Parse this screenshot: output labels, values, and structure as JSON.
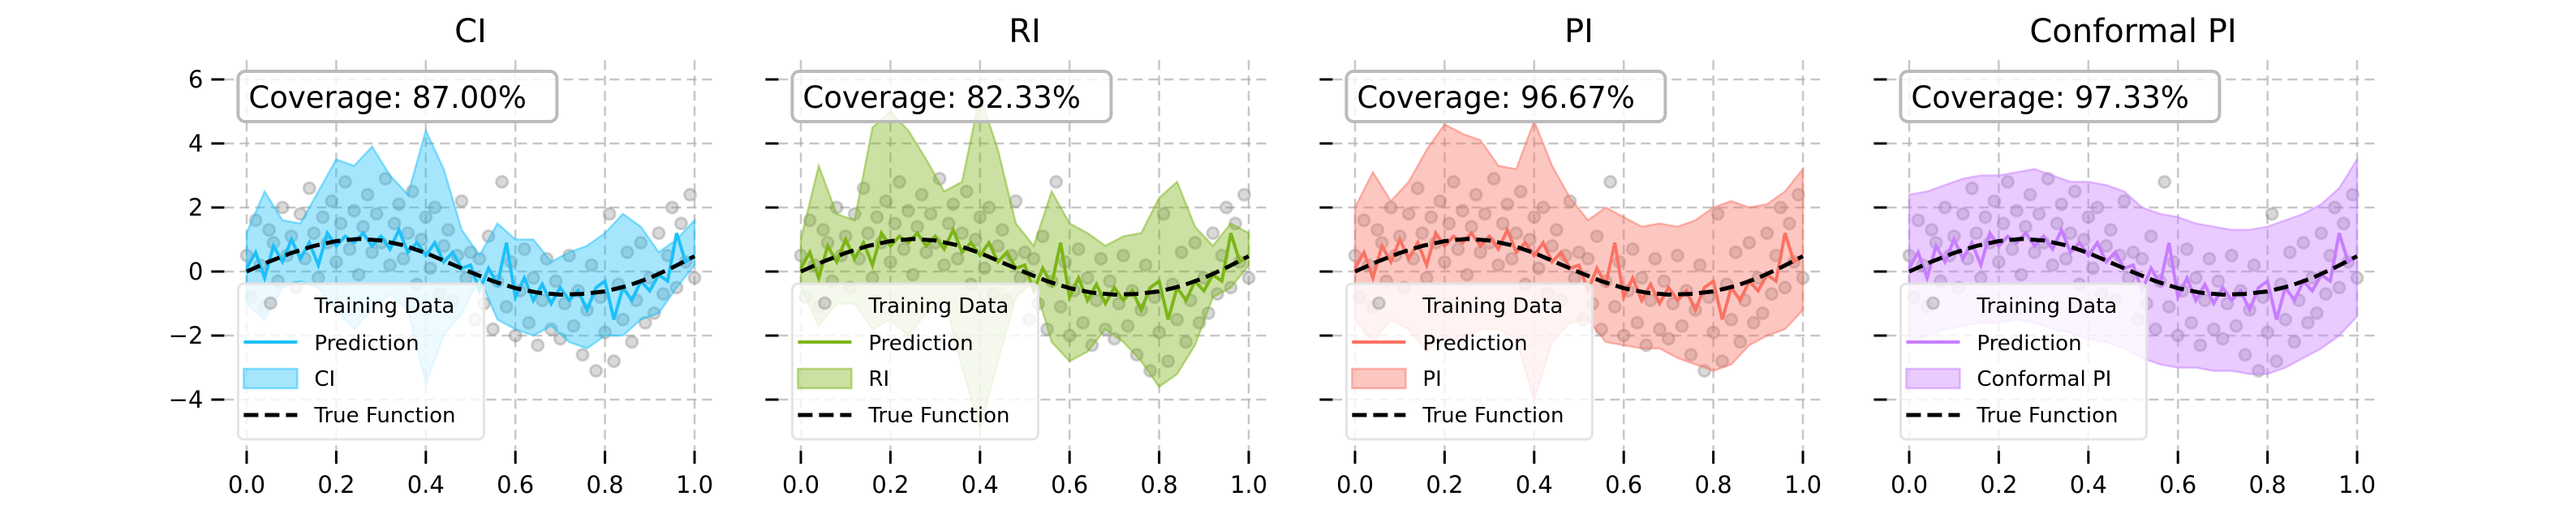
{
  "chart_data": {
    "type": "line",
    "grid": true,
    "legend_placement": "lower-left",
    "xlim": [
      -0.05,
      1.05
    ],
    "ylim": [
      -5.6,
      6.6
    ],
    "x_ticks": [
      "0.0",
      "0.2",
      "0.4",
      "0.6",
      "0.8",
      "1.0"
    ],
    "y_ticks": [
      "6",
      "4",
      "2",
      "0",
      "−2",
      "−4"
    ],
    "y_tick_values": [
      6,
      4,
      2,
      0,
      -2,
      -4
    ],
    "x_tick_values": [
      0,
      0.2,
      0.4,
      0.6,
      0.8,
      1.0
    ],
    "training_data_color": "#808080",
    "true_function": {
      "name": "True Function",
      "x": [
        0,
        0.05,
        0.1,
        0.15,
        0.2,
        0.25,
        0.3,
        0.35,
        0.4,
        0.45,
        0.5,
        0.55,
        0.6,
        0.65,
        0.7,
        0.75,
        0.8,
        0.85,
        0.9,
        0.95,
        1.0
      ],
      "y": [
        0,
        0.31,
        0.58,
        0.8,
        0.95,
        1.02,
        0.97,
        0.82,
        0.58,
        0.28,
        -0.02,
        -0.3,
        -0.52,
        -0.66,
        -0.72,
        -0.7,
        -0.62,
        -0.45,
        -0.2,
        0.12,
        0.48
      ]
    },
    "training_data": {
      "name": "Training Data",
      "x": [
        0,
        0.01,
        0.02,
        0.03,
        0.04,
        0.05,
        0.06,
        0.07,
        0.08,
        0.09,
        0.1,
        0.11,
        0.12,
        0.13,
        0.14,
        0.15,
        0.16,
        0.17,
        0.18,
        0.19,
        0.2,
        0.21,
        0.22,
        0.23,
        0.24,
        0.25,
        0.26,
        0.27,
        0.28,
        0.29,
        0.3,
        0.31,
        0.32,
        0.33,
        0.34,
        0.35,
        0.36,
        0.37,
        0.38,
        0.39,
        0.4,
        0.41,
        0.42,
        0.43,
        0.44,
        0.45,
        0.46,
        0.47,
        0.48,
        0.49,
        0.5,
        0.51,
        0.52,
        0.53,
        0.54,
        0.55,
        0.56,
        0.57,
        0.58,
        0.59,
        0.6,
        0.61,
        0.62,
        0.63,
        0.64,
        0.65,
        0.66,
        0.67,
        0.68,
        0.69,
        0.7,
        0.71,
        0.72,
        0.73,
        0.74,
        0.75,
        0.76,
        0.77,
        0.78,
        0.79,
        0.8,
        0.81,
        0.82,
        0.83,
        0.84,
        0.85,
        0.86,
        0.87,
        0.88,
        0.89,
        0.9,
        0.91,
        0.92,
        0.93,
        0.94,
        0.95,
        0.96,
        0.97,
        0.98,
        0.99,
        1.0
      ],
      "y": [
        0.5,
        -0.8,
        1.6,
        0.2,
        -1.1,
        1.3,
        0.9,
        -0.3,
        2.0,
        0.5,
        1.1,
        -0.5,
        1.8,
        0.4,
        2.6,
        1.2,
        -0.2,
        1.7,
        0.9,
        2.2,
        0.3,
        1.5,
        2.8,
        0.7,
        1.9,
        -0.1,
        1.4,
        2.4,
        0.6,
        1.8,
        0.9,
        2.9,
        0.2,
        1.5,
        2.1,
        0.4,
        1.2,
        2.5,
        -0.4,
        1.0,
        1.7,
        0.1,
        2.0,
        -0.7,
        0.8,
        1.3,
        -0.9,
        0.5,
        2.2,
        -0.2,
        0.6,
        -1.5,
        0.4,
        -1.0,
        1.1,
        -1.8,
        -0.3,
        2.8,
        -1.1,
        0.3,
        -2.0,
        -0.6,
        0.7,
        -1.6,
        -0.2,
        -2.3,
        -0.9,
        0.4,
        -1.8,
        -0.3,
        -2.1,
        -1.0,
        0.5,
        -1.7,
        -0.6,
        -2.6,
        -1.2,
        0.2,
        -3.1,
        -0.8,
        -1.9,
        1.8,
        -2.8,
        -0.4,
        -1.5,
        0.6,
        -2.2,
        -0.9,
        0.9,
        -1.6,
        -0.2,
        -1.3,
        1.2,
        -0.7,
        0.5,
        2.0,
        -0.5,
        1.5,
        0.3,
        2.4,
        -0.2
      ]
    },
    "prediction": {
      "name": "Prediction",
      "x": [
        0,
        0.02,
        0.04,
        0.06,
        0.08,
        0.1,
        0.12,
        0.14,
        0.16,
        0.18,
        0.2,
        0.22,
        0.24,
        0.26,
        0.28,
        0.3,
        0.32,
        0.34,
        0.36,
        0.38,
        0.4,
        0.42,
        0.44,
        0.46,
        0.48,
        0.5,
        0.52,
        0.54,
        0.56,
        0.58,
        0.6,
        0.62,
        0.64,
        0.66,
        0.68,
        0.7,
        0.72,
        0.74,
        0.76,
        0.78,
        0.8,
        0.82,
        0.84,
        0.86,
        0.88,
        0.9,
        0.92,
        0.94,
        0.96,
        0.98,
        1.0
      ],
      "y": [
        0.1,
        0.6,
        -0.2,
        0.8,
        0.3,
        1.0,
        0.4,
        0.9,
        0.2,
        1.2,
        0.8,
        1.1,
        0.9,
        1.2,
        0.8,
        1.1,
        0.7,
        1.3,
        0.6,
        0.9,
        0.5,
        0.9,
        0.3,
        0.6,
        0.1,
        0.2,
        -0.6,
        0.1,
        -0.4,
        0.9,
        -0.8,
        -0.2,
        -0.9,
        -0.4,
        -1.0,
        -0.5,
        -0.9,
        -0.6,
        -1.2,
        -0.5,
        -0.3,
        -1.5,
        -0.5,
        -0.9,
        -0.3,
        -0.6,
        -0.1,
        -0.3,
        1.2,
        0.3,
        0.5
      ]
    },
    "band_x": [
      0,
      0.04,
      0.08,
      0.12,
      0.16,
      0.2,
      0.24,
      0.28,
      0.32,
      0.36,
      0.4,
      0.44,
      0.48,
      0.52,
      0.56,
      0.6,
      0.64,
      0.68,
      0.72,
      0.76,
      0.8,
      0.84,
      0.88,
      0.92,
      0.96,
      1.0
    ],
    "panels": [
      {
        "title": "CI",
        "coverage_text": "Coverage: 87.00%",
        "band_label": "CI",
        "color": "#1ec0f9",
        "upper": [
          1.2,
          2.5,
          1.6,
          1.5,
          2.5,
          3.5,
          3.3,
          3.9,
          3.0,
          2.4,
          4.4,
          3.2,
          1.3,
          0.5,
          1.5,
          1.0,
          1.0,
          0.3,
          0.6,
          0.8,
          1.2,
          1.8,
          1.4,
          0.6,
          1.0,
          1.6
        ],
        "lower": [
          -1.0,
          -1.5,
          -0.5,
          -0.3,
          -0.5,
          -1.2,
          -1.8,
          -1.2,
          -0.7,
          -1.2,
          -3.5,
          -2.0,
          -1.3,
          -0.2,
          -1.5,
          -1.8,
          -2.0,
          -1.7,
          -2.2,
          -2.4,
          -2.0,
          -2.0,
          -1.5,
          -1.3,
          -0.5,
          0.2
        ]
      },
      {
        "title": "RI",
        "coverage_text": "Coverage: 82.33%",
        "band_label": "RI",
        "color": "#7cb518",
        "upper": [
          1.0,
          3.3,
          1.8,
          1.6,
          4.5,
          5.0,
          4.4,
          3.5,
          2.5,
          2.8,
          5.5,
          3.8,
          1.5,
          0.8,
          2.5,
          1.5,
          1.2,
          0.8,
          1.1,
          1.2,
          2.3,
          2.8,
          1.4,
          0.8,
          1.5,
          1.2
        ],
        "lower": [
          -0.5,
          -1.7,
          -1.0,
          -1.0,
          -1.8,
          -1.5,
          -2.0,
          -1.3,
          -0.8,
          -3.0,
          -4.9,
          -2.8,
          -0.8,
          -0.3,
          -2.2,
          -2.8,
          -2.5,
          -1.8,
          -2.2,
          -2.8,
          -3.6,
          -3.2,
          -2.3,
          -0.8,
          -0.5,
          0.2
        ]
      },
      {
        "title": "PI",
        "coverage_text": "Coverage: 96.67%",
        "band_label": "PI",
        "color": "#fa7264",
        "upper": [
          2.0,
          3.1,
          2.2,
          2.8,
          3.8,
          4.6,
          4.3,
          4.1,
          3.3,
          3.2,
          4.7,
          3.3,
          2.3,
          1.6,
          2.0,
          1.7,
          1.4,
          1.5,
          1.4,
          1.6,
          2.0,
          2.2,
          2.0,
          2.1,
          2.5,
          3.2
        ],
        "lower": [
          -1.5,
          -2.2,
          -1.5,
          -1.8,
          -2.5,
          -2.0,
          -2.2,
          -1.8,
          -1.8,
          -2.1,
          -4.0,
          -2.2,
          -1.6,
          -1.5,
          -2.2,
          -2.3,
          -2.4,
          -2.4,
          -2.7,
          -2.9,
          -3.1,
          -2.9,
          -2.3,
          -2.0,
          -1.8,
          -1.2
        ]
      },
      {
        "title": "Conformal PI",
        "coverage_text": "Coverage: 97.33%",
        "band_label": "Conformal PI",
        "color": "#c77dff",
        "upper": [
          2.4,
          2.5,
          2.7,
          2.9,
          3.0,
          3.0,
          3.1,
          3.2,
          3.0,
          2.8,
          2.8,
          2.7,
          2.5,
          2.0,
          1.8,
          1.7,
          1.5,
          1.4,
          1.3,
          1.3,
          1.4,
          1.6,
          1.8,
          2.1,
          2.6,
          3.5
        ],
        "lower": [
          -2.2,
          -2.0,
          -1.8,
          -1.7,
          -1.6,
          -1.6,
          -1.5,
          -1.6,
          -1.8,
          -1.9,
          -2.1,
          -2.2,
          -2.4,
          -2.7,
          -2.9,
          -3.0,
          -3.0,
          -3.1,
          -3.1,
          -3.2,
          -3.2,
          -3.0,
          -2.7,
          -2.4,
          -2.0,
          -1.4
        ]
      }
    ]
  }
}
